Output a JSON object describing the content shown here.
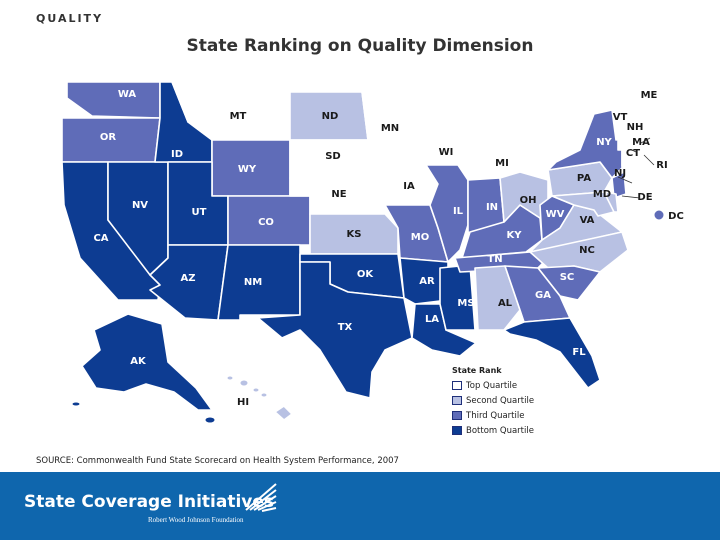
{
  "header": {
    "section_label": "QUALITY",
    "title": "State Ranking on Quality Dimension"
  },
  "colors": {
    "top_quartile": "#ffffff",
    "second_quartile": "#b8c1e3",
    "third_quartile": "#5f6cb8",
    "bottom_quartile": "#0d3c92",
    "footer": "#0f66ad"
  },
  "legend": {
    "title": "State Rank",
    "items": [
      {
        "key": "top",
        "label": "Top Quartile"
      },
      {
        "key": "second",
        "label": "Second Quartile"
      },
      {
        "key": "third",
        "label": "Third Quartile"
      },
      {
        "key": "bottom",
        "label": "Bottom Quartile"
      }
    ]
  },
  "states": {
    "WA": "third",
    "OR": "third",
    "CA": "bottom",
    "NV": "bottom",
    "ID": "bottom",
    "MT": "top",
    "WY": "third",
    "UT": "bottom",
    "AZ": "bottom",
    "CO": "third",
    "NM": "bottom",
    "ND": "second",
    "SD": "top",
    "NE": "top",
    "KS": "second",
    "OK": "bottom",
    "TX": "bottom",
    "MN": "top",
    "IA": "top",
    "MO": "third",
    "AR": "bottom",
    "LA": "bottom",
    "WI": "top",
    "IL": "third",
    "MS": "bottom",
    "MI": "top",
    "IN": "third",
    "KY": "third",
    "TN": "third",
    "AL": "second",
    "OH": "second",
    "WV": "third",
    "VA": "second",
    "NC": "second",
    "SC": "third",
    "GA": "third",
    "FL": "bottom",
    "PA": "second",
    "NY": "third",
    "ME": "top",
    "VT": "top",
    "NH": "top",
    "MA": "top",
    "CT": "top",
    "RI": "top",
    "NJ": "third",
    "DE": "second",
    "MD": "second",
    "DC": "third",
    "AK": "bottom",
    "HI": "second"
  },
  "source": "SOURCE: Commonwealth Fund State Scorecard on Health System Performance, 2007",
  "footer": {
    "title": "State Coverage Initiatives",
    "subtitle": "Robert Wood Johnson Foundation"
  }
}
